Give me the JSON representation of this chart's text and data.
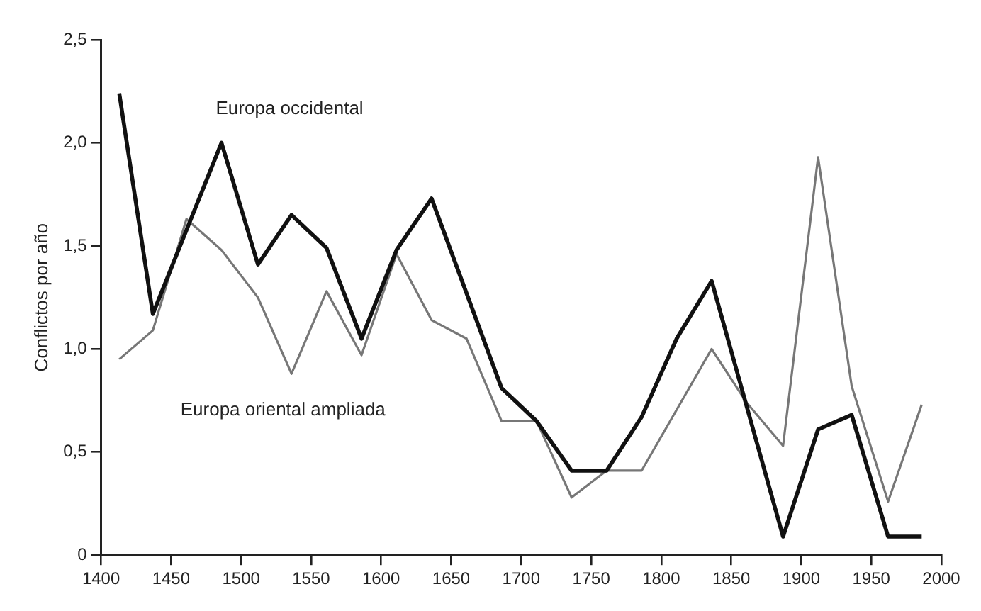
{
  "chart_data": {
    "type": "line",
    "ylabel": "Conflictos por año",
    "xlim": [
      1400,
      2000
    ],
    "xticks": [
      1400,
      1450,
      1500,
      1550,
      1600,
      1650,
      1700,
      1750,
      1800,
      1850,
      1900,
      1950,
      2000
    ],
    "ylim": [
      0,
      2.5
    ],
    "yticks": [
      0,
      {
        "value": 0.5,
        "label": "0,5"
      },
      {
        "value": 1,
        "label": "1,0"
      },
      {
        "value": 1.5,
        "label": "1,5"
      },
      {
        "value": 2,
        "label": "2,0"
      },
      {
        "value": 2.5,
        "label": "2,5"
      }
    ],
    "grid": false,
    "legend": false,
    "marker": "none",
    "line_style": "solid",
    "series": [
      {
        "name": "Europa occidental",
        "color": "#111111",
        "x": [
          1413,
          1437,
          1486,
          1512,
          1536,
          1561,
          1586,
          1611,
          1636,
          1686,
          1711,
          1736,
          1761,
          1786,
          1811,
          1836,
          1887,
          1912,
          1936,
          1962,
          1986
        ],
        "values": [
          2.24,
          1.17,
          2.0,
          1.41,
          1.65,
          1.49,
          1.05,
          1.48,
          1.73,
          0.81,
          0.65,
          0.41,
          0.41,
          0.67,
          1.05,
          1.33,
          0.09,
          0.61,
          0.68,
          0.09,
          0.09
        ]
      },
      {
        "name": "Europa oriental ampliada",
        "color": "#777777",
        "x": [
          1413,
          1437,
          1461,
          1486,
          1512,
          1536,
          1561,
          1586,
          1611,
          1636,
          1661,
          1686,
          1711,
          1736,
          1761,
          1786,
          1836,
          1861,
          1887,
          1912,
          1936,
          1962,
          1986
        ],
        "values": [
          0.95,
          1.09,
          1.63,
          1.48,
          1.25,
          0.88,
          1.28,
          0.97,
          1.46,
          1.14,
          1.05,
          0.65,
          0.65,
          0.28,
          0.41,
          0.41,
          1.0,
          0.74,
          0.53,
          1.93,
          0.82,
          0.26,
          0.73
        ]
      }
    ]
  }
}
